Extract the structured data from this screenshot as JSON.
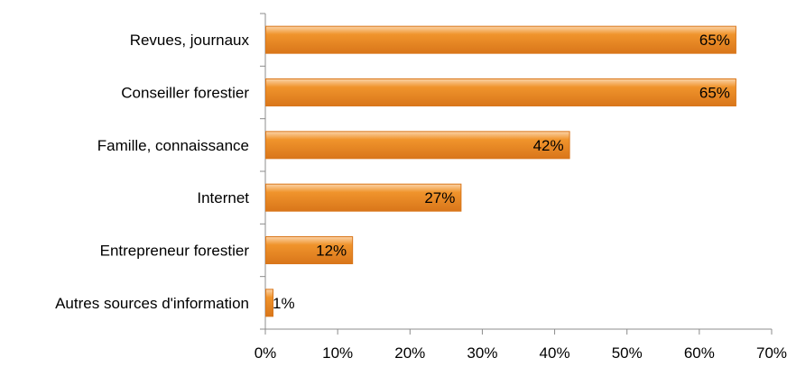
{
  "chart_data": {
    "type": "bar",
    "orientation": "horizontal",
    "title": "",
    "xlabel": "",
    "ylabel": "",
    "categories": [
      "Revues, journaux",
      "Conseiller forestier",
      "Famille, connaissance",
      "Internet",
      "Entrepreneur forestier",
      "Autres sources d'information"
    ],
    "values": [
      65,
      65,
      42,
      27,
      12,
      1
    ],
    "data_labels": [
      "65%",
      "65%",
      "42%",
      "27%",
      "12%",
      "1%"
    ],
    "xlim": [
      0,
      70
    ],
    "x_ticks": [
      "0%",
      "10%",
      "20%",
      "30%",
      "40%",
      "50%",
      "60%",
      "70%"
    ],
    "grid": false,
    "legend": "none",
    "bar_color": "#f0942c",
    "bar_color_light": "#fbd3a8",
    "bar_color_dark": "#d9761a"
  }
}
